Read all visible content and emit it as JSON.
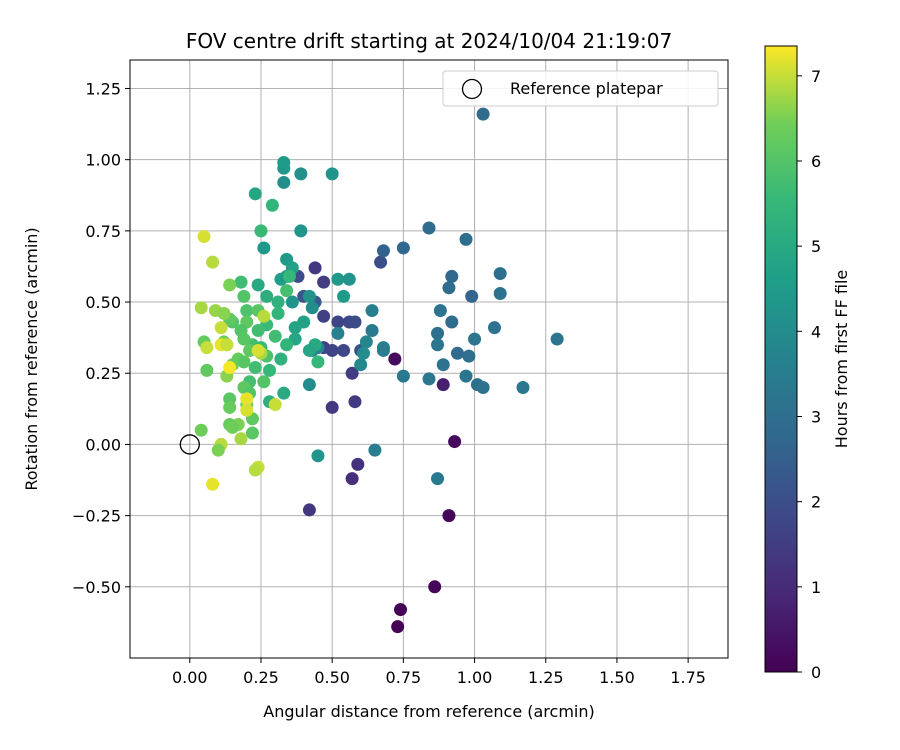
{
  "chart_data": {
    "type": "scatter",
    "title": "FOV centre drift starting at 2024/10/04 21:19:07",
    "xlabel": "Angular distance from reference (arcmin)",
    "ylabel": "Rotation from reference (arcmin)",
    "xlim": [
      -0.21,
      1.89
    ],
    "ylim": [
      -0.75,
      1.35
    ],
    "xticks": [
      0.0,
      0.25,
      0.5,
      0.75,
      1.0,
      1.25,
      1.5,
      1.75
    ],
    "xtick_labels": [
      "0.00",
      "0.25",
      "0.50",
      "0.75",
      "1.00",
      "1.25",
      "1.50",
      "1.75"
    ],
    "yticks": [
      -0.5,
      -0.25,
      0.0,
      0.25,
      0.5,
      0.75,
      1.0,
      1.25
    ],
    "ytick_labels": [
      "−0.50",
      "−0.25",
      "0.00",
      "0.25",
      "0.50",
      "0.75",
      "1.00",
      "1.25"
    ],
    "grid": true,
    "legend": {
      "placement": "top-right",
      "entries": [
        "Reference platepar"
      ]
    },
    "colorbar": {
      "label": "Hours from first FF file",
      "colormap": "viridis",
      "range": [
        0,
        7.35
      ],
      "ticks": [
        0,
        1,
        2,
        3,
        4,
        5,
        6,
        7
      ],
      "tick_labels": [
        "0",
        "1",
        "2",
        "3",
        "4",
        "5",
        "6",
        "7"
      ]
    },
    "reference_point": {
      "x": 0.0,
      "y": 0.0,
      "label": "Reference platepar"
    },
    "points": [
      {
        "x": 0.73,
        "y": -0.64,
        "c": 0.0
      },
      {
        "x": 0.74,
        "y": -0.58,
        "c": 0.05
      },
      {
        "x": 0.86,
        "y": -0.5,
        "c": 0.1
      },
      {
        "x": 0.91,
        "y": -0.25,
        "c": 0.15
      },
      {
        "x": 0.93,
        "y": 0.01,
        "c": 0.2
      },
      {
        "x": 0.72,
        "y": 0.3,
        "c": 0.25
      },
      {
        "x": 0.89,
        "y": 0.21,
        "c": 0.7
      },
      {
        "x": 0.57,
        "y": -0.12,
        "c": 1.1
      },
      {
        "x": 0.59,
        "y": -0.07,
        "c": 1.2
      },
      {
        "x": 0.42,
        "y": -0.23,
        "c": 1.3
      },
      {
        "x": 0.5,
        "y": 0.13,
        "c": 1.4
      },
      {
        "x": 0.58,
        "y": 0.15,
        "c": 1.45
      },
      {
        "x": 0.57,
        "y": 0.25,
        "c": 1.5
      },
      {
        "x": 0.44,
        "y": 0.62,
        "c": 1.3
      },
      {
        "x": 0.47,
        "y": 0.57,
        "c": 1.5
      },
      {
        "x": 0.47,
        "y": 0.45,
        "c": 1.6
      },
      {
        "x": 0.52,
        "y": 0.43,
        "c": 1.7
      },
      {
        "x": 0.56,
        "y": 0.43,
        "c": 1.8
      },
      {
        "x": 0.58,
        "y": 0.43,
        "c": 1.9
      },
      {
        "x": 0.47,
        "y": 0.34,
        "c": 1.6
      },
      {
        "x": 0.5,
        "y": 0.33,
        "c": 1.7
      },
      {
        "x": 0.54,
        "y": 0.33,
        "c": 1.8
      },
      {
        "x": 0.67,
        "y": 0.64,
        "c": 2.0
      },
      {
        "x": 0.6,
        "y": 0.33,
        "c": 2.1
      },
      {
        "x": 0.38,
        "y": 0.59,
        "c": 1.9
      },
      {
        "x": 0.4,
        "y": 0.52,
        "c": 2.2
      },
      {
        "x": 0.44,
        "y": 0.5,
        "c": 2.3
      },
      {
        "x": 0.68,
        "y": 0.68,
        "c": 2.6
      },
      {
        "x": 0.75,
        "y": 0.69,
        "c": 2.8
      },
      {
        "x": 0.84,
        "y": 0.76,
        "c": 2.9
      },
      {
        "x": 0.97,
        "y": 0.72,
        "c": 3.0
      },
      {
        "x": 1.03,
        "y": 1.16,
        "c": 2.9
      },
      {
        "x": 0.92,
        "y": 0.59,
        "c": 2.8
      },
      {
        "x": 0.91,
        "y": 0.55,
        "c": 2.9
      },
      {
        "x": 0.99,
        "y": 0.52,
        "c": 2.7
      },
      {
        "x": 1.09,
        "y": 0.6,
        "c": 3.0
      },
      {
        "x": 1.09,
        "y": 0.53,
        "c": 3.1
      },
      {
        "x": 0.88,
        "y": 0.47,
        "c": 3.1
      },
      {
        "x": 0.92,
        "y": 0.43,
        "c": 2.9
      },
      {
        "x": 0.87,
        "y": 0.39,
        "c": 3.0
      },
      {
        "x": 0.87,
        "y": 0.35,
        "c": 3.2
      },
      {
        "x": 0.94,
        "y": 0.32,
        "c": 2.9
      },
      {
        "x": 0.98,
        "y": 0.31,
        "c": 3.0
      },
      {
        "x": 1.0,
        "y": 0.37,
        "c": 3.2
      },
      {
        "x": 1.07,
        "y": 0.41,
        "c": 3.1
      },
      {
        "x": 0.89,
        "y": 0.28,
        "c": 3.1
      },
      {
        "x": 0.97,
        "y": 0.24,
        "c": 3.2
      },
      {
        "x": 1.01,
        "y": 0.21,
        "c": 3.0
      },
      {
        "x": 1.03,
        "y": 0.2,
        "c": 3.1
      },
      {
        "x": 1.17,
        "y": 0.2,
        "c": 3.3
      },
      {
        "x": 1.29,
        "y": 0.37,
        "c": 3.2
      },
      {
        "x": 0.84,
        "y": 0.23,
        "c": 3.3
      },
      {
        "x": 0.87,
        "y": -0.12,
        "c": 3.4
      },
      {
        "x": 0.65,
        "y": -0.02,
        "c": 3.5
      },
      {
        "x": 0.75,
        "y": 0.24,
        "c": 3.4
      },
      {
        "x": 0.64,
        "y": 0.47,
        "c": 3.5
      },
      {
        "x": 0.64,
        "y": 0.4,
        "c": 3.4
      },
      {
        "x": 0.68,
        "y": 0.34,
        "c": 3.6
      },
      {
        "x": 0.68,
        "y": 0.33,
        "c": 3.5
      },
      {
        "x": 0.62,
        "y": 0.36,
        "c": 3.8
      },
      {
        "x": 0.61,
        "y": 0.32,
        "c": 4.0
      },
      {
        "x": 0.6,
        "y": 0.28,
        "c": 3.9
      },
      {
        "x": 0.52,
        "y": 0.39,
        "c": 3.6
      },
      {
        "x": 0.45,
        "y": 0.34,
        "c": 3.8
      },
      {
        "x": 0.43,
        "y": 0.33,
        "c": 3.7
      },
      {
        "x": 0.42,
        "y": 0.21,
        "c": 4.0
      },
      {
        "x": 0.45,
        "y": -0.04,
        "c": 4.3
      },
      {
        "x": 0.43,
        "y": 0.48,
        "c": 4.0
      },
      {
        "x": 0.42,
        "y": 0.52,
        "c": 4.2
      },
      {
        "x": 0.52,
        "y": 0.58,
        "c": 4.4
      },
      {
        "x": 0.56,
        "y": 0.58,
        "c": 4.3
      },
      {
        "x": 0.54,
        "y": 0.52,
        "c": 4.5
      },
      {
        "x": 0.5,
        "y": 0.95,
        "c": 4.3
      },
      {
        "x": 0.39,
        "y": 0.95,
        "c": 4.2
      },
      {
        "x": 0.33,
        "y": 0.97,
        "c": 4.4
      },
      {
        "x": 0.33,
        "y": 0.99,
        "c": 4.5
      },
      {
        "x": 0.33,
        "y": 0.92,
        "c": 4.1
      },
      {
        "x": 0.39,
        "y": 0.75,
        "c": 4.3
      },
      {
        "x": 0.26,
        "y": 0.69,
        "c": 4.4
      },
      {
        "x": 0.34,
        "y": 0.65,
        "c": 4.5
      },
      {
        "x": 0.36,
        "y": 0.62,
        "c": 4.7
      },
      {
        "x": 0.32,
        "y": 0.58,
        "c": 4.6
      },
      {
        "x": 0.34,
        "y": 0.59,
        "c": 4.4
      },
      {
        "x": 0.36,
        "y": 0.5,
        "c": 4.3
      },
      {
        "x": 0.4,
        "y": 0.43,
        "c": 4.7
      },
      {
        "x": 0.37,
        "y": 0.41,
        "c": 4.8
      },
      {
        "x": 0.37,
        "y": 0.37,
        "c": 4.9
      },
      {
        "x": 0.44,
        "y": 0.35,
        "c": 5.0
      },
      {
        "x": 0.42,
        "y": 0.33,
        "c": 4.9
      },
      {
        "x": 0.45,
        "y": 0.29,
        "c": 5.5
      },
      {
        "x": 0.33,
        "y": 0.18,
        "c": 5.0
      },
      {
        "x": 0.28,
        "y": 0.15,
        "c": 5.2
      },
      {
        "x": 0.23,
        "y": 0.88,
        "c": 4.9
      },
      {
        "x": 0.29,
        "y": 0.84,
        "c": 5.4
      },
      {
        "x": 0.25,
        "y": 0.75,
        "c": 5.6
      },
      {
        "x": 0.35,
        "y": 0.59,
        "c": 5.5
      },
      {
        "x": 0.24,
        "y": 0.56,
        "c": 5.0
      },
      {
        "x": 0.27,
        "y": 0.52,
        "c": 5.2
      },
      {
        "x": 0.31,
        "y": 0.5,
        "c": 5.3
      },
      {
        "x": 0.34,
        "y": 0.54,
        "c": 5.8
      },
      {
        "x": 0.31,
        "y": 0.46,
        "c": 5.4
      },
      {
        "x": 0.27,
        "y": 0.42,
        "c": 5.6
      },
      {
        "x": 0.24,
        "y": 0.4,
        "c": 5.7
      },
      {
        "x": 0.22,
        "y": 0.35,
        "c": 5.8
      },
      {
        "x": 0.25,
        "y": 0.34,
        "c": 5.6
      },
      {
        "x": 0.27,
        "y": 0.31,
        "c": 5.9
      },
      {
        "x": 0.3,
        "y": 0.38,
        "c": 5.7
      },
      {
        "x": 0.32,
        "y": 0.3,
        "c": 5.3
      },
      {
        "x": 0.34,
        "y": 0.35,
        "c": 5.4
      },
      {
        "x": 0.28,
        "y": 0.26,
        "c": 5.5
      },
      {
        "x": 0.23,
        "y": 0.27,
        "c": 5.7
      },
      {
        "x": 0.21,
        "y": 0.22,
        "c": 5.8
      },
      {
        "x": 0.26,
        "y": 0.22,
        "c": 6.0
      },
      {
        "x": 0.18,
        "y": 0.57,
        "c": 5.7
      },
      {
        "x": 0.19,
        "y": 0.52,
        "c": 6.0
      },
      {
        "x": 0.2,
        "y": 0.47,
        "c": 5.9
      },
      {
        "x": 0.24,
        "y": 0.47,
        "c": 6.1
      },
      {
        "x": 0.2,
        "y": 0.43,
        "c": 6.2
      },
      {
        "x": 0.18,
        "y": 0.4,
        "c": 6.0
      },
      {
        "x": 0.19,
        "y": 0.37,
        "c": 6.1
      },
      {
        "x": 0.21,
        "y": 0.33,
        "c": 6.2
      },
      {
        "x": 0.17,
        "y": 0.3,
        "c": 6.3
      },
      {
        "x": 0.19,
        "y": 0.29,
        "c": 6.1
      },
      {
        "x": 0.15,
        "y": 0.43,
        "c": 6.0
      },
      {
        "x": 0.14,
        "y": 0.44,
        "c": 6.2
      },
      {
        "x": 0.12,
        "y": 0.36,
        "c": 6.4
      },
      {
        "x": 0.13,
        "y": 0.35,
        "c": 6.5
      },
      {
        "x": 0.15,
        "y": 0.28,
        "c": 6.3
      },
      {
        "x": 0.13,
        "y": 0.24,
        "c": 6.6
      },
      {
        "x": 0.19,
        "y": 0.2,
        "c": 6.2
      },
      {
        "x": 0.21,
        "y": 0.18,
        "c": 6.0
      },
      {
        "x": 0.14,
        "y": 0.16,
        "c": 6.1
      },
      {
        "x": 0.14,
        "y": 0.13,
        "c": 6.3
      },
      {
        "x": 0.2,
        "y": 0.14,
        "c": 6.4
      },
      {
        "x": 0.22,
        "y": 0.09,
        "c": 6.2
      },
      {
        "x": 0.17,
        "y": 0.07,
        "c": 6.5
      },
      {
        "x": 0.14,
        "y": 0.07,
        "c": 6.3
      },
      {
        "x": 0.15,
        "y": 0.06,
        "c": 6.4
      },
      {
        "x": 0.22,
        "y": 0.04,
        "c": 6.1
      },
      {
        "x": 0.18,
        "y": 0.02,
        "c": 6.8
      },
      {
        "x": 0.11,
        "y": 0.0,
        "c": 6.9
      },
      {
        "x": 0.1,
        "y": -0.02,
        "c": 6.5
      },
      {
        "x": 0.04,
        "y": 0.05,
        "c": 6.4
      },
      {
        "x": 0.06,
        "y": 0.26,
        "c": 6.2
      },
      {
        "x": 0.05,
        "y": 0.36,
        "c": 6.3
      },
      {
        "x": 0.06,
        "y": 0.34,
        "c": 7.0
      },
      {
        "x": 0.04,
        "y": 0.48,
        "c": 6.8
      },
      {
        "x": 0.09,
        "y": 0.47,
        "c": 6.7
      },
      {
        "x": 0.12,
        "y": 0.46,
        "c": 6.6
      },
      {
        "x": 0.11,
        "y": 0.41,
        "c": 7.0
      },
      {
        "x": 0.08,
        "y": 0.64,
        "c": 6.9
      },
      {
        "x": 0.05,
        "y": 0.73,
        "c": 7.1
      },
      {
        "x": 0.14,
        "y": 0.56,
        "c": 6.5
      },
      {
        "x": 0.25,
        "y": 0.32,
        "c": 6.8
      },
      {
        "x": 0.3,
        "y": 0.14,
        "c": 7.0
      },
      {
        "x": 0.2,
        "y": 0.16,
        "c": 7.2
      },
      {
        "x": 0.2,
        "y": 0.12,
        "c": 7.1
      },
      {
        "x": 0.24,
        "y": -0.08,
        "c": 7.0
      },
      {
        "x": 0.23,
        "y": -0.09,
        "c": 6.9
      },
      {
        "x": 0.08,
        "y": -0.14,
        "c": 7.2
      },
      {
        "x": 0.14,
        "y": 0.27,
        "c": 7.3
      },
      {
        "x": 0.11,
        "y": 0.35,
        "c": 7.2
      },
      {
        "x": 0.13,
        "y": 0.35,
        "c": 7.0
      },
      {
        "x": 0.26,
        "y": 0.45,
        "c": 6.9
      },
      {
        "x": 0.24,
        "y": 0.33,
        "c": 7.1
      }
    ]
  }
}
